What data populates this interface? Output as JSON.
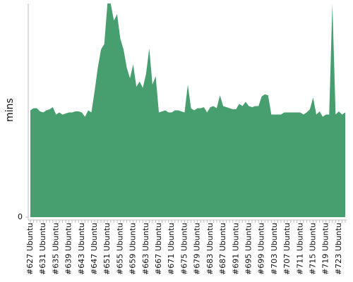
{
  "chart_data": {
    "type": "area",
    "ylabel": "mins",
    "color": "#479e6e",
    "ylim": [
      0,
      100
    ],
    "yticks": [
      0
    ],
    "categories": [
      "#627 Ubuntu",
      null,
      null,
      null,
      "#631 Ubuntu",
      null,
      null,
      null,
      "#635 Ubuntu",
      null,
      null,
      null,
      "#639 Ubuntu",
      null,
      null,
      null,
      "#643 Ubuntu",
      null,
      null,
      null,
      "#647 Ubuntu",
      null,
      null,
      null,
      "#651 Ubuntu",
      null,
      null,
      null,
      "#655 Ubuntu",
      null,
      null,
      null,
      "#659 Ubuntu",
      null,
      null,
      null,
      "#663 Ubuntu",
      null,
      null,
      null,
      "#667 Ubuntu",
      null,
      null,
      null,
      "#671 Ubuntu",
      null,
      null,
      null,
      "#675 Ubuntu",
      null,
      null,
      null,
      "#679 Ubuntu",
      null,
      null,
      null,
      "#683 Ubuntu",
      null,
      null,
      null,
      "#687 Ubuntu",
      null,
      null,
      null,
      "#691 Ubuntu",
      null,
      null,
      null,
      "#695 Ubuntu",
      null,
      null,
      null,
      "#699 Ubuntu",
      null,
      null,
      null,
      "#703 Ubuntu",
      null,
      null,
      null,
      "#707 Ubuntu",
      null,
      null,
      null,
      "#711 Ubuntu",
      null,
      null,
      null,
      "#715 Ubuntu",
      null,
      null,
      null,
      "#719 Ubuntu",
      null,
      null,
      null,
      "#723 Ubuntu",
      null,
      null
    ],
    "values": [
      50,
      51,
      51,
      49.5,
      49,
      50,
      50.5,
      51.5,
      48,
      49,
      48,
      48.5,
      49,
      49,
      49.5,
      49.5,
      49,
      47,
      50,
      49,
      59,
      70,
      78.5,
      81,
      100,
      100,
      92,
      95,
      83.5,
      78.5,
      70,
      65,
      71.5,
      61,
      63.5,
      60.5,
      67,
      79,
      62,
      66,
      49,
      49.5,
      50,
      49,
      49,
      50,
      50,
      49.5,
      49,
      62,
      51,
      50,
      51,
      51,
      51.5,
      49,
      51.5,
      52,
      51,
      57,
      52,
      51.5,
      51,
      50.5,
      50.5,
      53,
      52,
      54,
      52,
      51.5,
      52,
      52,
      56.5,
      57.5,
      57,
      48,
      48,
      48,
      48,
      49,
      49,
      49,
      49,
      49,
      49,
      48,
      49,
      50.5,
      56,
      48,
      49.5,
      47,
      48,
      48,
      100,
      48,
      49.5,
      48,
      49
    ]
  }
}
